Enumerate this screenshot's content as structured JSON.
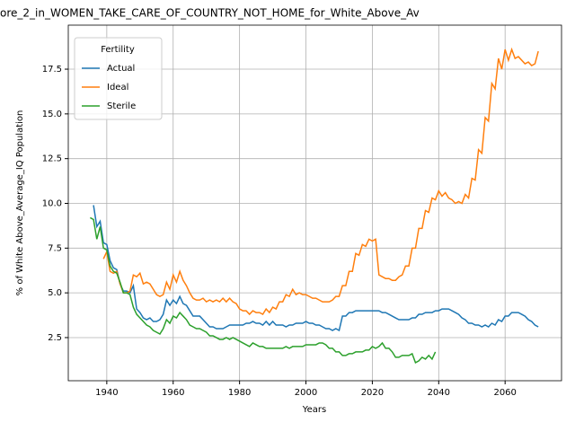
{
  "chart_data": {
    "type": "line",
    "title": "ore_2_in_WOMEN_TAKE_CARE_OF_COUNTRY_NOT_HOME_for_White_Above_Av",
    "xlabel": "Years",
    "ylabel": "% of White Above_Average_IQ Population",
    "legend_title": "Fertility",
    "legend": "upper left",
    "grid": true,
    "xlim": [
      1928.4,
      2077
    ],
    "xticks": [
      1940,
      1960,
      1980,
      2000,
      2020,
      2040,
      2060
    ],
    "ylim": [
      0.09,
      19.96
    ],
    "yticks": [
      {
        "value": 2.5,
        "label": "2.5"
      },
      {
        "value": 5,
        "label": "5.0"
      },
      {
        "value": 7.5,
        "label": "7.5"
      },
      {
        "value": 10,
        "label": "10.0"
      },
      {
        "value": 12.5,
        "label": "12.5"
      },
      {
        "value": 15,
        "label": "15.0"
      },
      {
        "value": 17.5,
        "label": "17.5"
      }
    ],
    "x": [
      1935,
      1936,
      1937,
      1938,
      1939,
      1940,
      1941,
      1942,
      1943,
      1944,
      1945,
      1946,
      1947,
      1948,
      1949,
      1950,
      1951,
      1952,
      1953,
      1954,
      1955,
      1956,
      1957,
      1958,
      1959,
      1960,
      1961,
      1962,
      1963,
      1964,
      1965,
      1966,
      1967,
      1968,
      1969,
      1970,
      1971,
      1972,
      1973,
      1974,
      1975,
      1976,
      1977,
      1978,
      1979,
      1980,
      1981,
      1982,
      1983,
      1984,
      1985,
      1986,
      1987,
      1988,
      1989,
      1990,
      1991,
      1992,
      1993,
      1994,
      1995,
      1996,
      1997,
      1998,
      1999,
      2000,
      2001,
      2002,
      2003,
      2004,
      2005,
      2006,
      2007,
      2008,
      2009,
      2010,
      2011,
      2012,
      2013,
      2014,
      2015,
      2016,
      2017,
      2018,
      2019,
      2020,
      2021,
      2022,
      2023,
      2024,
      2025,
      2026,
      2027,
      2028,
      2029,
      2030,
      2031,
      2032,
      2033,
      2034,
      2035,
      2036,
      2037,
      2038,
      2039,
      2040,
      2041,
      2042,
      2043,
      2044,
      2045,
      2046,
      2047,
      2048,
      2049,
      2050,
      2051,
      2052,
      2053,
      2054,
      2055,
      2056,
      2057,
      2058,
      2059,
      2060,
      2061,
      2062,
      2063,
      2064,
      2065,
      2066,
      2067,
      2068,
      2069,
      2070
    ],
    "series": [
      {
        "name": "Actual",
        "color": "#1f77b4",
        "values": [
          null,
          9.9,
          8.7,
          9.0,
          7.8,
          7.7,
          6.8,
          6.4,
          6.3,
          5.5,
          5.1,
          5.1,
          5.0,
          5.4,
          4.1,
          3.9,
          3.6,
          3.5,
          3.6,
          3.4,
          3.4,
          3.5,
          3.8,
          4.6,
          4.3,
          4.6,
          4.4,
          4.8,
          4.4,
          4.3,
          4.0,
          3.7,
          3.7,
          3.7,
          3.5,
          3.3,
          3.1,
          3.1,
          3.0,
          3.0,
          3.0,
          3.1,
          3.2,
          3.2,
          3.2,
          3.2,
          3.2,
          3.3,
          3.3,
          3.4,
          3.3,
          3.3,
          3.2,
          3.4,
          3.2,
          3.4,
          3.2,
          3.2,
          3.2,
          3.1,
          3.2,
          3.2,
          3.3,
          3.3,
          3.3,
          3.4,
          3.3,
          3.3,
          3.2,
          3.2,
          3.1,
          3.0,
          3.0,
          2.9,
          3.0,
          2.9,
          3.7,
          3.7,
          3.9,
          3.9,
          4.0,
          4.0,
          4.0,
          4.0,
          4.0,
          4.0,
          4.0,
          4.0,
          3.9,
          3.9,
          3.8,
          3.7,
          3.6,
          3.5,
          3.5,
          3.5,
          3.5,
          3.6,
          3.6,
          3.8,
          3.8,
          3.9,
          3.9,
          3.9,
          4.0,
          4.0,
          4.1,
          4.1,
          4.1,
          4.0,
          3.9,
          3.8,
          3.6,
          3.5,
          3.3,
          3.3,
          3.2,
          3.2,
          3.1,
          3.2,
          3.1,
          3.3,
          3.2,
          3.5,
          3.4,
          3.7,
          3.7,
          3.9,
          3.9,
          3.9,
          3.8,
          3.7,
          3.5,
          3.4,
          3.2,
          3.1
        ]
      },
      {
        "name": "Ideal",
        "color": "#ff7f0e",
        "values": [
          null,
          null,
          null,
          null,
          6.9,
          7.3,
          6.2,
          6.1,
          6.2,
          5.5,
          5.0,
          5.0,
          5.1,
          6.0,
          5.9,
          6.1,
          5.5,
          5.6,
          5.5,
          5.2,
          4.9,
          4.8,
          4.9,
          5.6,
          5.2,
          6.0,
          5.6,
          6.2,
          5.7,
          5.4,
          5.0,
          4.7,
          4.6,
          4.6,
          4.7,
          4.5,
          4.6,
          4.5,
          4.6,
          4.5,
          4.7,
          4.5,
          4.7,
          4.5,
          4.4,
          4.1,
          4.0,
          4.0,
          3.8,
          4.0,
          3.9,
          3.9,
          3.8,
          4.1,
          3.9,
          4.2,
          4.1,
          4.5,
          4.5,
          4.9,
          4.8,
          5.2,
          4.9,
          5.0,
          4.9,
          4.9,
          4.8,
          4.7,
          4.7,
          4.6,
          4.5,
          4.5,
          4.5,
          4.6,
          4.8,
          4.8,
          5.4,
          5.4,
          6.2,
          6.2,
          7.2,
          7.1,
          7.7,
          7.6,
          8.0,
          7.9,
          8.0,
          6.0,
          5.9,
          5.8,
          5.8,
          5.7,
          5.7,
          5.9,
          6.0,
          6.5,
          6.5,
          7.5,
          7.5,
          8.6,
          8.6,
          9.6,
          9.5,
          10.3,
          10.2,
          10.7,
          10.4,
          10.6,
          10.3,
          10.2,
          10.0,
          10.1,
          10.0,
          10.5,
          10.3,
          11.4,
          11.3,
          13.0,
          12.8,
          14.8,
          14.6,
          16.7,
          16.4,
          18.1,
          17.5,
          18.6,
          18.0,
          18.6,
          18.1,
          18.2,
          18.0,
          17.8,
          17.9,
          17.7,
          17.8,
          18.5
        ]
      },
      {
        "name": "Sterile",
        "color": "#2ca02c",
        "values": [
          9.2,
          9.1,
          8.0,
          8.7,
          7.5,
          7.4,
          6.5,
          6.2,
          6.1,
          5.6,
          5.0,
          5.0,
          4.9,
          4.2,
          3.8,
          3.6,
          3.4,
          3.2,
          3.1,
          2.9,
          2.8,
          2.7,
          3.0,
          3.5,
          3.3,
          3.7,
          3.6,
          3.9,
          3.7,
          3.5,
          3.2,
          3.1,
          3.0,
          3.0,
          2.9,
          2.8,
          2.6,
          2.6,
          2.5,
          2.4,
          2.4,
          2.5,
          2.4,
          2.5,
          2.4,
          2.3,
          2.2,
          2.1,
          2.0,
          2.2,
          2.1,
          2.0,
          2.0,
          1.9,
          1.9,
          1.9,
          1.9,
          1.9,
          1.9,
          2.0,
          1.9,
          2.0,
          2.0,
          2.0,
          2.0,
          2.1,
          2.1,
          2.1,
          2.1,
          2.2,
          2.2,
          2.1,
          1.9,
          1.9,
          1.7,
          1.7,
          1.5,
          1.5,
          1.6,
          1.6,
          1.7,
          1.7,
          1.7,
          1.8,
          1.8,
          2.0,
          1.9,
          2.0,
          2.2,
          1.9,
          1.9,
          1.7,
          1.4,
          1.4,
          1.5,
          1.5,
          1.5,
          1.6,
          1.1,
          1.2,
          1.4,
          1.3,
          1.5,
          1.3,
          1.7,
          null,
          null,
          null,
          null,
          null,
          null,
          null,
          null,
          null,
          null,
          null,
          null,
          null,
          null,
          null,
          null,
          null,
          null,
          null,
          null,
          null,
          null,
          null,
          null,
          null,
          null,
          null,
          null,
          null,
          null,
          null
        ]
      }
    ]
  }
}
